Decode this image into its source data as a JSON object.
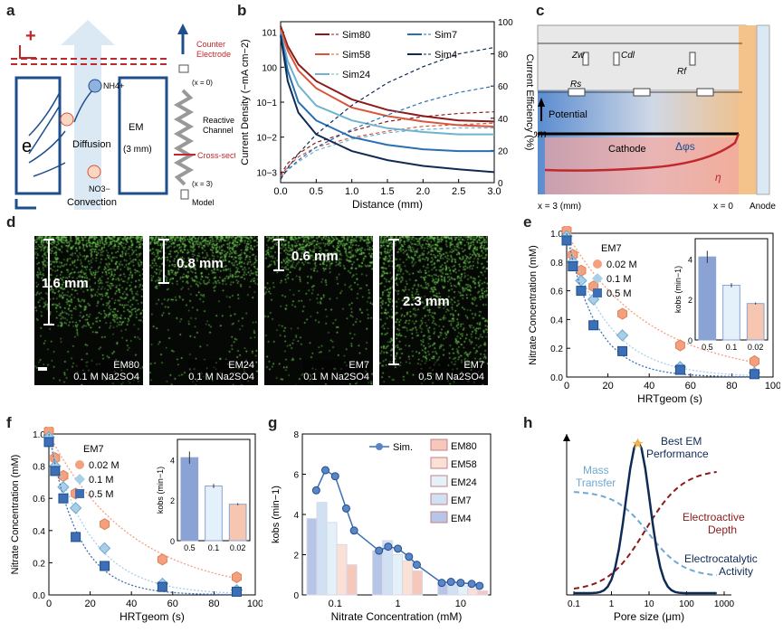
{
  "panels": {
    "a": "a",
    "b": "b",
    "c": "c",
    "d": "d",
    "e": "e",
    "f": "f",
    "g": "g",
    "h": "h"
  },
  "panel_a": {
    "plus": "+",
    "e_label": "e",
    "nh4": "NH4+",
    "no3": "NO3−",
    "diffusion": "Diffusion",
    "convection": "Convection",
    "em": "EM",
    "em_thick": "(3 mm)",
    "counter_electrode_1": "Counter",
    "counter_electrode_2": "Electrode",
    "x0": "(x = 0)",
    "x3": "(x = 3)",
    "reactive_channel_1": "Reactive",
    "reactive_channel_2": "Channel",
    "cross_section": "Cross-section",
    "model": "Model"
  },
  "panel_c": {
    "zw": "Zw",
    "cdl": "Cdl",
    "rs": "Rs",
    "rf": "Rf",
    "potential": "Potential",
    "phi_m": "φm",
    "cathode": "Cathode",
    "dphi": "Δφs",
    "eta": "η",
    "x3": "x = 3 (mm)",
    "x0": "x = 0",
    "anode": "Anode"
  },
  "panel_d": {
    "images": [
      {
        "label": "EM80",
        "electrolyte": "0.1 M Na2SO4",
        "depth": "1.6 mm"
      },
      {
        "label": "EM24",
        "electrolyte": "0.1 M Na2SO4",
        "depth": "0.8 mm"
      },
      {
        "label": "EM7",
        "electrolyte": "0.1 M Na2SO4",
        "depth": "0.6 mm"
      },
      {
        "label": "EM7",
        "electrolyte": "0.5 M Na2SO4",
        "depth": "2.3 mm"
      }
    ]
  },
  "chart_data": [
    {
      "id": "b",
      "type": "line",
      "xlabel": "Distance (mm)",
      "ylabel": "Current Density (−mA cm−2)",
      "ylabel_right": "Current Efficiency (%)",
      "xlim": [
        0,
        3.0
      ],
      "ylim_log": [
        0.0005,
        20
      ],
      "ylim_right": [
        0,
        100
      ],
      "x_ticks": [
        "0.0",
        "0.5",
        "1.0",
        "1.5",
        "2.0",
        "2.5",
        "3.0"
      ],
      "y_ticks": [
        "10−3",
        "10−2",
        "10−1",
        "100",
        "101"
      ],
      "y_right_ticks": [
        "0",
        "20",
        "40",
        "60",
        "80",
        "100"
      ],
      "series": [
        {
          "name": "Sim80",
          "color": "#8b1a1a",
          "x": [
            0,
            0.1,
            0.25,
            0.5,
            1,
            1.5,
            2,
            2.5,
            3
          ],
          "current": [
            15,
            4,
            1.2,
            0.4,
            0.12,
            0.06,
            0.04,
            0.03,
            0.028
          ],
          "efficiency": [
            5,
            12,
            18,
            25,
            32,
            38,
            41,
            43,
            44
          ]
        },
        {
          "name": "Sim58",
          "color": "#d9553a",
          "x": [
            0,
            0.1,
            0.25,
            0.5,
            1,
            1.5,
            2,
            2.5,
            3
          ],
          "current": [
            12,
            3,
            0.8,
            0.25,
            0.07,
            0.04,
            0.028,
            0.022,
            0.02
          ],
          "efficiency": [
            4,
            10,
            16,
            22,
            28,
            32,
            35,
            36,
            37
          ]
        },
        {
          "name": "Sim24",
          "color": "#6fb3cf",
          "x": [
            0,
            0.1,
            0.25,
            0.5,
            1,
            1.5,
            2,
            2.5,
            3
          ],
          "current": [
            10,
            1.5,
            0.3,
            0.08,
            0.03,
            0.018,
            0.014,
            0.012,
            0.012
          ],
          "efficiency": [
            3,
            8,
            13,
            20,
            27,
            31,
            33,
            34,
            34
          ]
        },
        {
          "name": "Sim7",
          "color": "#2a6fb0",
          "x": [
            0,
            0.1,
            0.25,
            0.5,
            1,
            1.5,
            2,
            2.5,
            3
          ],
          "current": [
            9,
            0.8,
            0.1,
            0.03,
            0.01,
            0.006,
            0.0045,
            0.004,
            0.004
          ],
          "efficiency": [
            3,
            8,
            14,
            22,
            33,
            42,
            50,
            56,
            60
          ]
        },
        {
          "name": "Sim4",
          "color": "#0f2a55",
          "x": [
            0,
            0.1,
            0.25,
            0.5,
            1,
            1.5,
            2,
            2.5,
            3
          ],
          "current": [
            8,
            0.4,
            0.05,
            0.012,
            0.004,
            0.0022,
            0.0015,
            0.0012,
            0.001
          ],
          "efficiency": [
            2,
            9,
            18,
            30,
            48,
            62,
            72,
            80,
            84
          ]
        }
      ]
    },
    {
      "id": "e",
      "type": "scatter",
      "xlabel": "HRTgeom (s)",
      "ylabel": "Nitrate Concentration (mM)",
      "xlim": [
        0,
        100
      ],
      "ylim": [
        0,
        1.0
      ],
      "x_ticks": [
        "0",
        "20",
        "40",
        "60",
        "80",
        "100"
      ],
      "y_ticks": [
        "0.0",
        "0.2",
        "0.4",
        "0.6",
        "0.8",
        "1.0"
      ],
      "legend_title": "EM7",
      "series": [
        {
          "name": "0.02 M",
          "color": "#f4a07c",
          "marker": "hexagon",
          "x": [
            0,
            3,
            7,
            13,
            27,
            55,
            91
          ],
          "y": [
            1.02,
            0.85,
            0.74,
            0.63,
            0.44,
            0.22,
            0.11
          ]
        },
        {
          "name": "0.1 M",
          "color": "#a9cfe6",
          "marker": "diamond",
          "x": [
            0,
            3,
            7,
            13,
            27,
            55,
            91
          ],
          "y": [
            0.98,
            0.8,
            0.67,
            0.54,
            0.29,
            0.07,
            0.03
          ]
        },
        {
          "name": "0.5 M",
          "color": "#3d6fb6",
          "marker": "square",
          "x": [
            0,
            3,
            7,
            13,
            27,
            55,
            91
          ],
          "y": [
            0.95,
            0.77,
            0.6,
            0.36,
            0.18,
            0.05,
            0.02
          ]
        }
      ],
      "inset": {
        "ylabel": "kobs (min−1)",
        "categories": [
          "0.5",
          "0.1",
          "0.02"
        ],
        "values": [
          4.1,
          2.7,
          1.8
        ],
        "errors": [
          0.3,
          0.1,
          0.05
        ],
        "ylim": [
          0,
          5
        ],
        "y_ticks": [
          "0",
          "2",
          "4"
        ],
        "colors": [
          "#8aa3d4",
          "#e4f0fa",
          "#f7c6b0"
        ]
      }
    },
    {
      "id": "f",
      "type": "scatter",
      "xlabel": "HRTgeom (s)",
      "ylabel": "Nitrate Concentration (mM)",
      "xlim": [
        0,
        100
      ],
      "ylim": [
        0,
        1.0
      ],
      "x_ticks": [
        "0",
        "20",
        "40",
        "60",
        "80",
        "100"
      ],
      "y_ticks": [
        "0.0",
        "0.2",
        "0.4",
        "0.6",
        "0.8",
        "1.0"
      ],
      "legend_title": "EM7",
      "series": [
        {
          "name": "0.02 M",
          "color": "#f4a07c",
          "marker": "hexagon",
          "x": [
            0,
            3,
            7,
            13,
            27,
            55,
            91
          ],
          "y": [
            1.02,
            0.85,
            0.74,
            0.63,
            0.44,
            0.22,
            0.11
          ]
        },
        {
          "name": "0.1 M",
          "color": "#a9cfe6",
          "marker": "diamond",
          "x": [
            0,
            3,
            7,
            13,
            27,
            55,
            91
          ],
          "y": [
            0.98,
            0.8,
            0.67,
            0.54,
            0.29,
            0.07,
            0.03
          ]
        },
        {
          "name": "0.5 M",
          "color": "#3d6fb6",
          "marker": "square",
          "x": [
            0,
            3,
            7,
            13,
            27,
            55,
            91
          ],
          "y": [
            0.95,
            0.77,
            0.6,
            0.36,
            0.18,
            0.05,
            0.02
          ]
        }
      ],
      "inset": {
        "ylabel": "kobs (min−1)",
        "categories": [
          "0.5",
          "0.1",
          "0.02"
        ],
        "values": [
          4.1,
          2.7,
          1.8
        ],
        "errors": [
          0.3,
          0.1,
          0.05
        ],
        "ylim": [
          0,
          5
        ],
        "y_ticks": [
          "0",
          "2",
          "4"
        ],
        "colors": [
          "#8aa3d4",
          "#e4f0fa",
          "#f7c6b0"
        ]
      }
    },
    {
      "id": "g",
      "type": "bar",
      "xlabel": "Nitrate Concentration (mM)",
      "ylabel": "kobs (min−1)",
      "ylim": [
        0,
        8
      ],
      "y_ticks": [
        "0",
        "2",
        "4",
        "6",
        "8"
      ],
      "x_ticks": [
        "0.1",
        "1",
        "10"
      ],
      "groups": [
        "0.1",
        "1",
        "10"
      ],
      "series": [
        {
          "name": "EM80",
          "color": "#f6c8bc",
          "values": [
            1.5,
            1.2,
            0.2
          ]
        },
        {
          "name": "EM58",
          "color": "#fbe0d6",
          "values": [
            2.5,
            1.7,
            0.3
          ]
        },
        {
          "name": "EM24",
          "color": "#e5f1f9",
          "values": [
            3.6,
            2.0,
            0.45
          ]
        },
        {
          "name": "EM7",
          "color": "#cfe1f2",
          "values": [
            4.6,
            2.7,
            0.6
          ]
        },
        {
          "name": "EM4",
          "color": "#b7c5e6",
          "values": [
            3.8,
            2.2,
            0.55
          ]
        }
      ],
      "errors": [
        0.6,
        0.2,
        0.1
      ],
      "sim": {
        "name": "Sim.",
        "color": "#3e6db5",
        "x": [
          0.05,
          0.07,
          0.1,
          0.15,
          0.2,
          0.5,
          0.7,
          1,
          1.5,
          2,
          5,
          7,
          10,
          15,
          20
        ],
        "y": [
          5.2,
          6.2,
          5.9,
          4.3,
          3.2,
          2.2,
          2.4,
          2.3,
          1.9,
          1.5,
          0.6,
          0.65,
          0.6,
          0.55,
          0.45
        ]
      }
    },
    {
      "id": "h",
      "type": "line",
      "xlabel": "Pore size (μm)",
      "x_ticks": [
        "0.1",
        "1",
        "10",
        "100",
        "1000"
      ],
      "annotations": [
        "Best EM Performance",
        "Mass Transfer",
        "Electroactive Depth",
        "Electrocatalytic Activity"
      ],
      "series": [
        {
          "name": "Mass Transfer",
          "color": "#6fa8d0",
          "style": "dashed"
        },
        {
          "name": "Electroactive Depth",
          "color": "#8b1a1a",
          "style": "dashed"
        },
        {
          "name": "Best EM Performance",
          "color": "#0f2a55",
          "style": "solid"
        }
      ]
    }
  ]
}
